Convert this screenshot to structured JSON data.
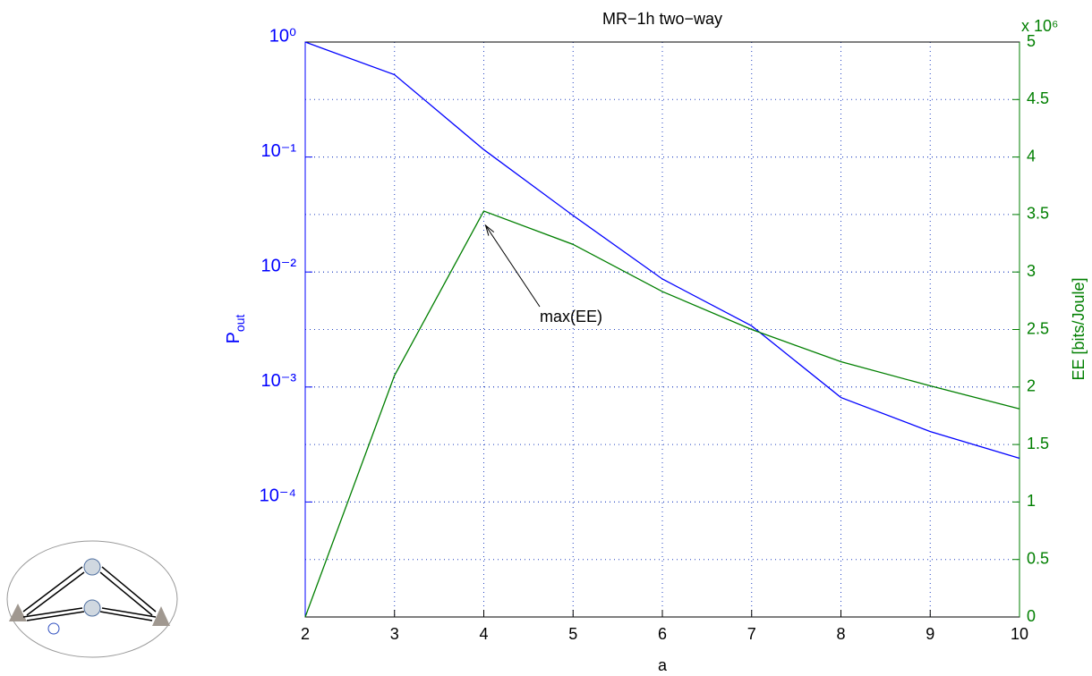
{
  "chart_data": {
    "type": "line",
    "title": "MR−1h two−way",
    "xlabel": "a",
    "ylabel": "P",
    "ylabel_subscript": "out",
    "y2label": "EE [bits/Joule]",
    "y2_multiplier": "x 10⁶",
    "x": [
      2,
      3,
      4,
      5,
      6,
      7,
      8,
      9,
      10
    ],
    "series": [
      {
        "name": "P_out",
        "color": "#0000ff",
        "values": [
          1,
          0.52,
          0.116,
          0.031,
          0.0087,
          0.0034,
          0.00081,
          0.00041,
          0.00024
        ]
      },
      {
        "name": "EE",
        "color": "#007f00",
        "axis": "y2",
        "values": [
          0,
          2.1,
          3.53,
          3.24,
          2.83,
          2.5,
          2.22,
          2.01,
          1.81
        ]
      }
    ],
    "xlim": [
      2,
      10
    ],
    "xticks": [
      2,
      3,
      4,
      5,
      6,
      7,
      8,
      9,
      10
    ],
    "ylim": [
      1e-05,
      1
    ],
    "ylog": true,
    "yticks": [
      {
        "value": 1,
        "label": "10⁰"
      },
      {
        "value": 0.1,
        "label": "10⁻¹"
      },
      {
        "value": 0.01,
        "label": "10⁻²"
      },
      {
        "value": 0.001,
        "label": "10⁻³"
      },
      {
        "value": 0.0001,
        "label": "10⁻⁴"
      }
    ],
    "y_color": "#0000ff",
    "y2lim": [
      0,
      5
    ],
    "y2ticks": [
      0,
      0.5,
      1,
      1.5,
      2,
      2.5,
      3,
      3.5,
      4,
      4.5,
      5
    ],
    "y2_color": "#007f00",
    "grid": true,
    "annotation": "max(EE)"
  }
}
